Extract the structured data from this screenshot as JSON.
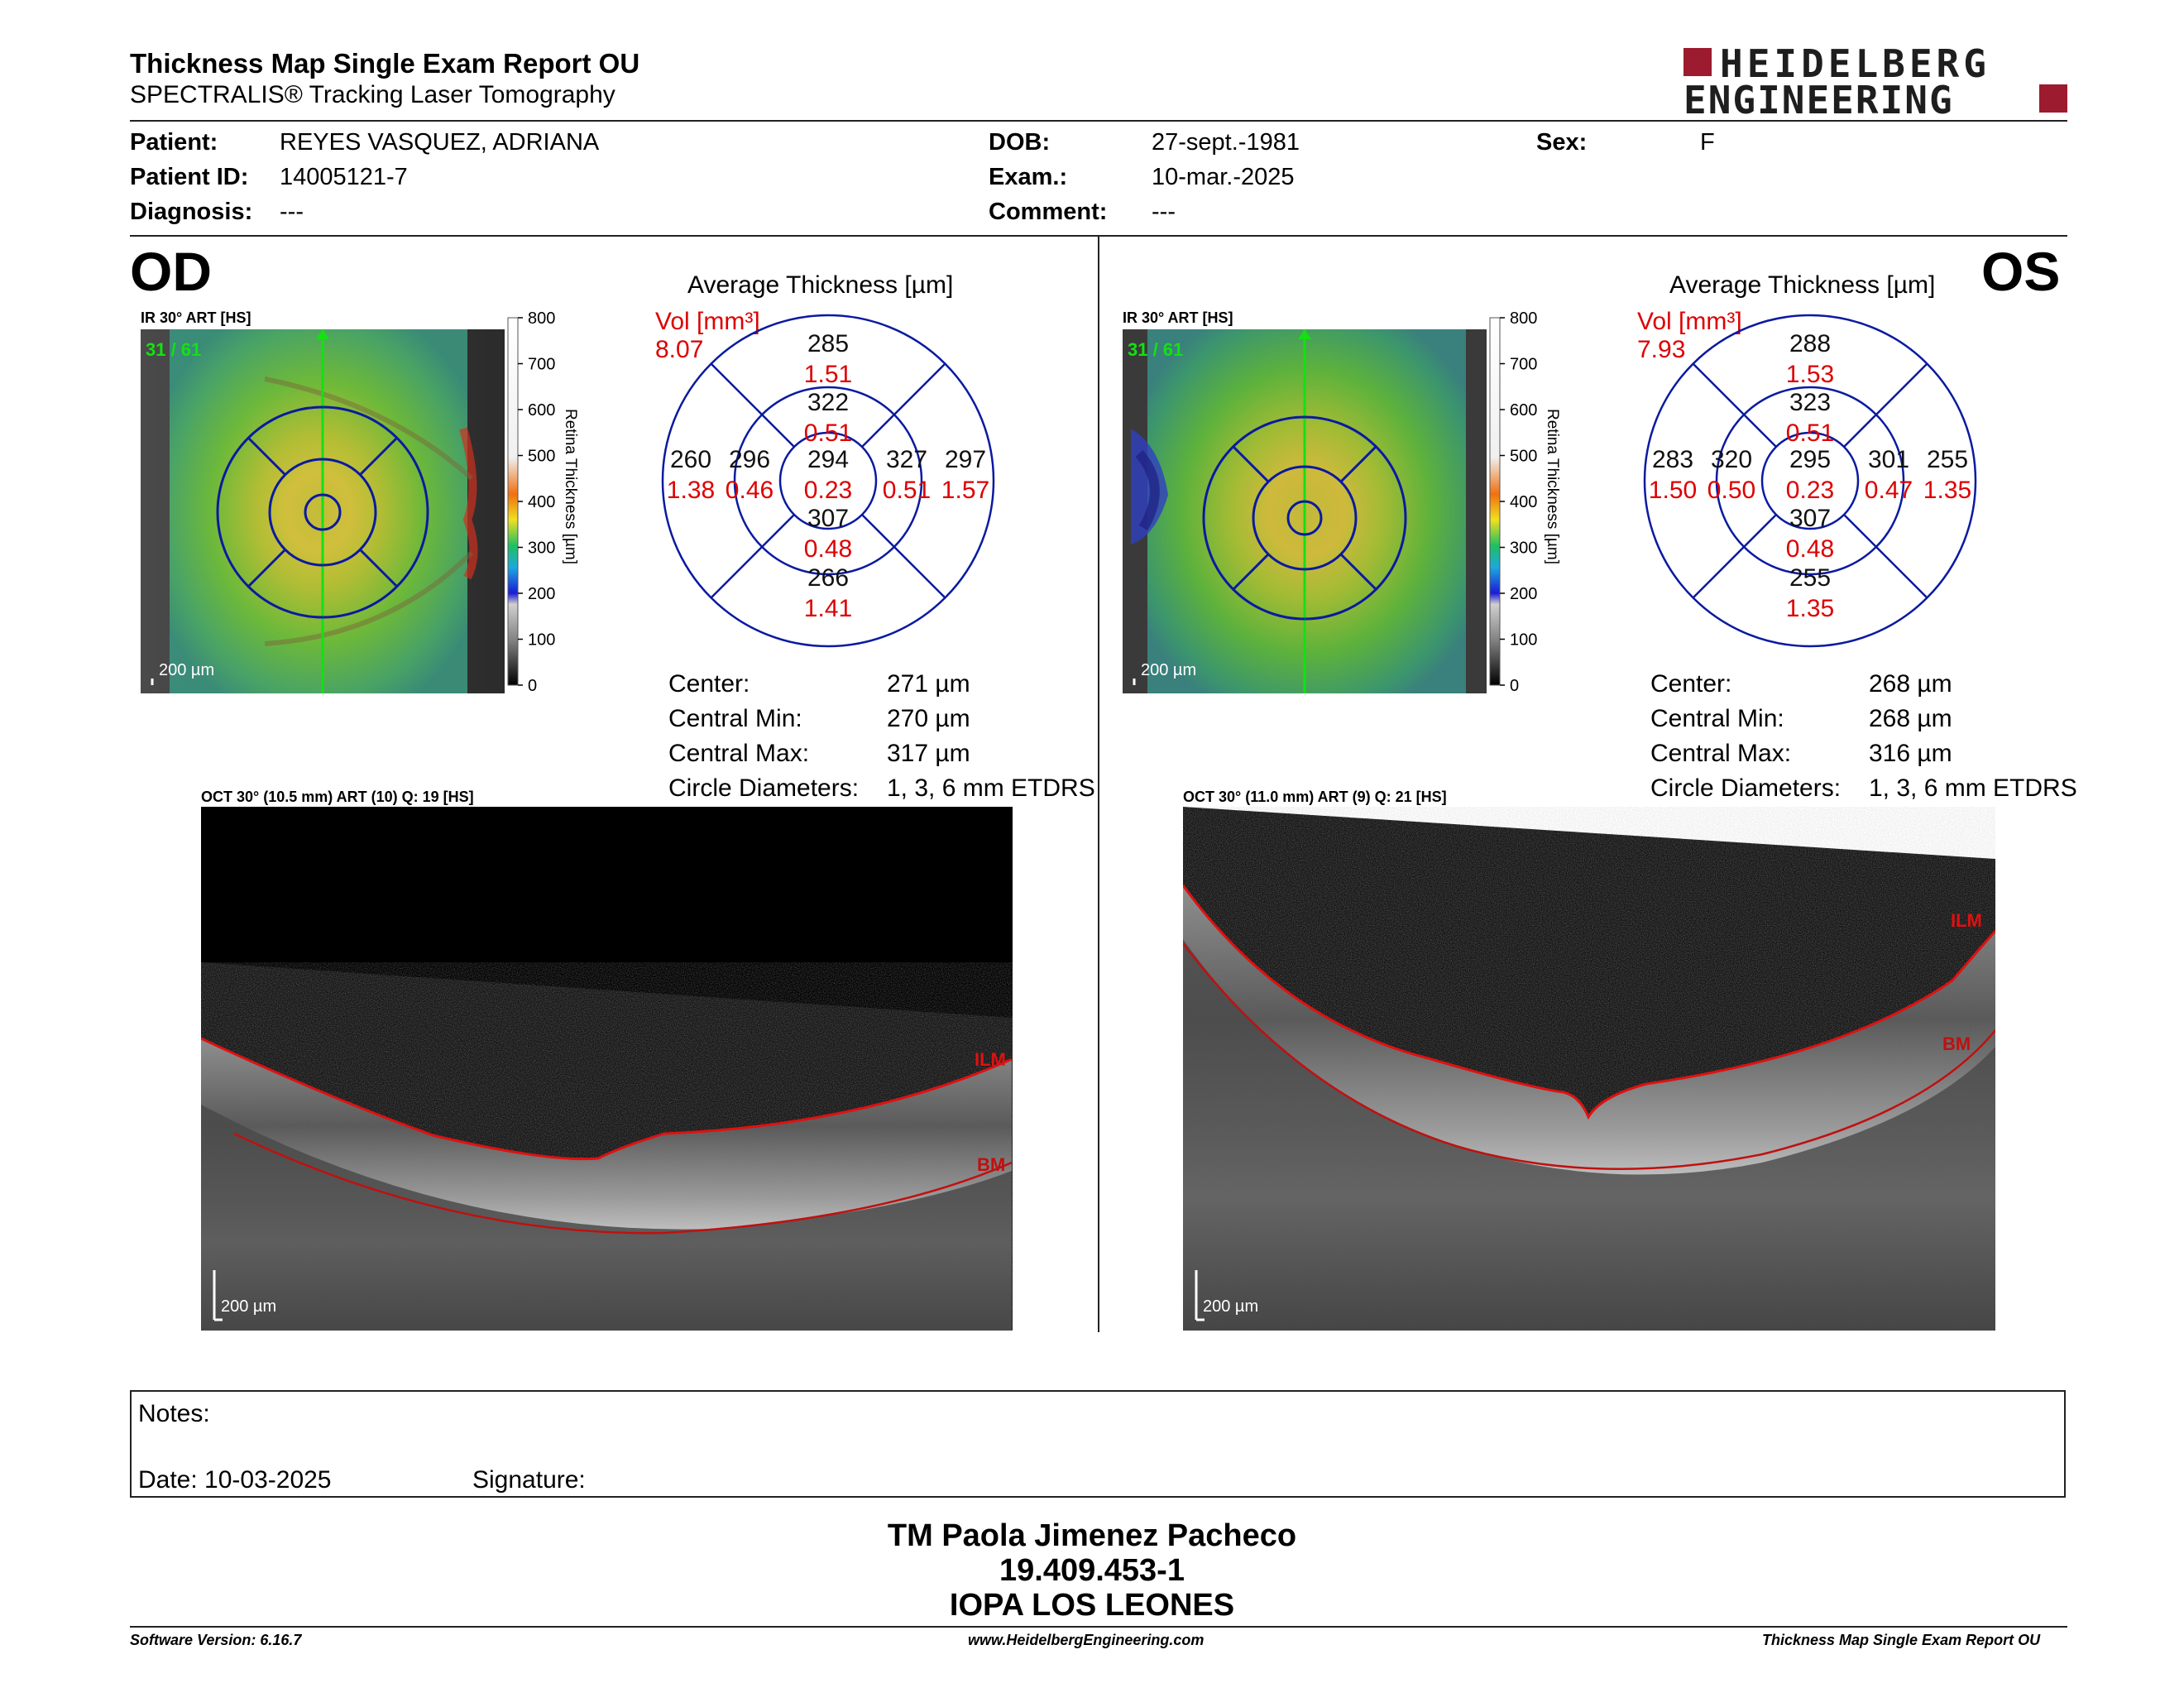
{
  "header": {
    "title": "Thickness Map Single Exam Report OU",
    "subtitle": "SPECTRALIS® Tracking Laser Tomography",
    "logo_line1": "HEIDELBERG",
    "logo_line2": "ENGINEERING"
  },
  "patient": {
    "patient_label": "Patient:",
    "patient_value": "REYES VASQUEZ, ADRIANA",
    "id_label": "Patient ID:",
    "id_value": "14005121-7",
    "diagnosis_label": "Diagnosis:",
    "diagnosis_value": "---",
    "dob_label": "DOB:",
    "dob_value": "27-sept.-1981",
    "exam_label": "Exam.:",
    "exam_value": "10-mar.-2025",
    "comment_label": "Comment:",
    "comment_value": "---",
    "sex_label": "Sex:",
    "sex_value": "F"
  },
  "od": {
    "eye": "OD",
    "ir_label": "IR 30° ART [HS]",
    "slice": "31 / 61",
    "scalebar": "200 µm",
    "colorbar": {
      "ticks": [
        "800",
        "700",
        "600",
        "500",
        "400",
        "300",
        "200",
        "100",
        "0"
      ],
      "label": "Retina  Thickness [µm]"
    },
    "avg_title": "Average Thickness [µm]",
    "vol_label": "Vol [mm³]",
    "vol_value": "8.07",
    "etdrs": {
      "center_t": "294",
      "center_v": "0.23",
      "inner_sup_t": "322",
      "inner_sup_v": "0.51",
      "inner_inf_t": "307",
      "inner_inf_v": "0.48",
      "inner_left_t": "296",
      "inner_left_v": "0.46",
      "inner_right_t": "327",
      "inner_right_v": "0.51",
      "outer_sup_t": "285",
      "outer_sup_v": "1.51",
      "outer_inf_t": "266",
      "outer_inf_v": "1.41",
      "outer_left_t": "260",
      "outer_left_v": "1.38",
      "outer_right_t": "297",
      "outer_right_v": "1.57"
    },
    "stats": {
      "center_label": "Center:",
      "center_value": "271 µm",
      "min_label": "Central Min:",
      "min_value": "270 µm",
      "max_label": "Central Max:",
      "max_value": "317 µm",
      "diam_label": "Circle Diameters:",
      "diam_value": "1, 3, 6 mm ETDRS"
    },
    "oct_label": "OCT 30° (10.5 mm) ART (10) Q: 19 [HS]",
    "oct_scalebar": "200 µm",
    "ilm": "ILM",
    "bm": "BM"
  },
  "os": {
    "eye": "OS",
    "ir_label": "IR 30° ART [HS]",
    "slice": "31 / 61",
    "scalebar": "200 µm",
    "colorbar": {
      "ticks": [
        "800",
        "700",
        "600",
        "500",
        "400",
        "300",
        "200",
        "100",
        "0"
      ],
      "label": "Retina  Thickness [µm]"
    },
    "avg_title": "Average Thickness [µm]",
    "vol_label": "Vol [mm³]",
    "vol_value": "7.93",
    "etdrs": {
      "center_t": "295",
      "center_v": "0.23",
      "inner_sup_t": "323",
      "inner_sup_v": "0.51",
      "inner_inf_t": "307",
      "inner_inf_v": "0.48",
      "inner_left_t": "320",
      "inner_left_v": "0.50",
      "inner_right_t": "301",
      "inner_right_v": "0.47",
      "outer_sup_t": "288",
      "outer_sup_v": "1.53",
      "outer_inf_t": "255",
      "outer_inf_v": "1.35",
      "outer_left_t": "283",
      "outer_left_v": "1.50",
      "outer_right_t": "255",
      "outer_right_v": "1.35"
    },
    "stats": {
      "center_label": "Center:",
      "center_value": "268 µm",
      "min_label": "Central Min:",
      "min_value": "268 µm",
      "max_label": "Central Max:",
      "max_value": "316 µm",
      "diam_label": "Circle Diameters:",
      "diam_value": "1, 3, 6 mm ETDRS"
    },
    "oct_label": "OCT 30° (11.0 mm) ART (9) Q: 21 [HS]",
    "oct_scalebar": "200 µm",
    "ilm": "ILM",
    "bm": "BM"
  },
  "notes": {
    "notes_label": "Notes:",
    "date_label": "Date: 10-03-2025",
    "signature_label": "Signature:"
  },
  "signer": {
    "name": "TM Paola Jimenez Pacheco",
    "rut": "19.409.453-1",
    "institution": "IOPA LOS LEONES"
  },
  "footer": {
    "version": "Software Version: 6.16.7",
    "website": "www.HeidelbergEngineering.com",
    "report": "Thickness Map Single Exam Report OU"
  },
  "colors": {
    "accent_red": "#dd0000",
    "etdrs_blue": "#0a1aa0",
    "logo_red": "#9c1b2e"
  }
}
